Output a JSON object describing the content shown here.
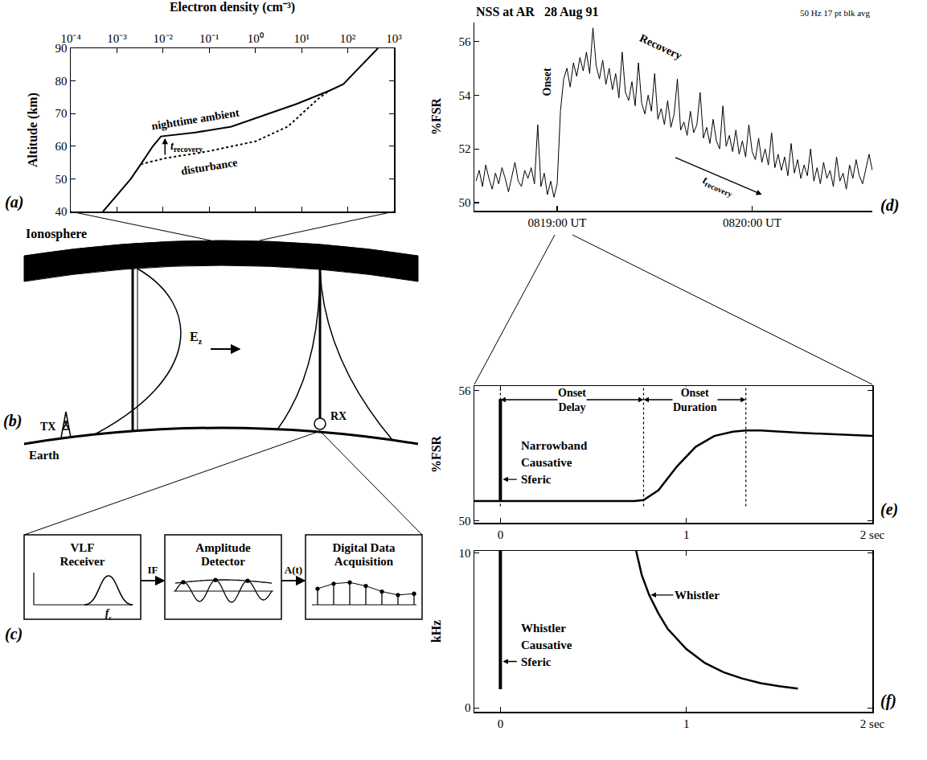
{
  "chart_data": [
    {
      "panel": "(a)",
      "type": "line",
      "x_label": "Electron density (cm⁻³)",
      "y_label": "Altitude (km)",
      "log": "x",
      "color": "#000000",
      "xlim": [
        0.0001,
        1000
      ],
      "xticks": [
        {
          "value": 0.0001,
          "label": "10⁻⁴"
        },
        {
          "value": 0.001,
          "label": "10⁻³"
        },
        {
          "value": 0.01,
          "label": "10⁻²"
        },
        {
          "value": 0.1,
          "label": "10⁻¹"
        },
        {
          "value": 1,
          "label": "10⁰"
        },
        {
          "value": 10,
          "label": "10¹"
        },
        {
          "value": 100,
          "label": "10²"
        },
        {
          "value": 1000,
          "label": "10³"
        }
      ],
      "ylim": [
        40,
        90
      ],
      "yticks": [
        40,
        50,
        60,
        70,
        80,
        90
      ],
      "series": [
        {
          "name": "nighttime ambient",
          "line_style": "solid",
          "x": [
            0.0005,
            0.002,
            0.0033,
            0.006,
            0.009,
            0.05,
            0.3,
            2,
            8,
            40,
            80,
            150,
            450
          ],
          "values": [
            40,
            50,
            54.5,
            60,
            63,
            64.2,
            66,
            70,
            73,
            77,
            79,
            83,
            90
          ]
        },
        {
          "name": "disturbance",
          "line_style": "dotted",
          "x": [
            0.0033,
            0.011,
            0.1,
            1,
            5,
            12,
            25,
            40
          ],
          "values": [
            54.5,
            56.3,
            58.5,
            61.5,
            66,
            71,
            75,
            77
          ]
        }
      ],
      "arrows": [
        {
          "text": "t",
          "subscript": "recovery",
          "x_from": 0.011,
          "y_from": 57,
          "x_to": 0.011,
          "y_to": 62.5
        }
      ]
    },
    {
      "panel": "(d)",
      "type": "line",
      "title": "NSS at AR   28 Aug 91",
      "subtitle": "50 Hz 17 pt blk avg",
      "y_label": "%FSR",
      "color": "#000000",
      "xlim": [
        29914.5,
        30037
      ],
      "xticks": [
        {
          "value": 29940,
          "label": "0819:00 UT"
        },
        {
          "value": 30000,
          "label": "0820:00 UT"
        }
      ],
      "ylim": [
        49.7,
        56.7
      ],
      "yticks": [
        50,
        52,
        54,
        56
      ],
      "x": [
        29915,
        29916,
        29917,
        29918,
        29919,
        29920,
        29921,
        29922,
        29923,
        29924,
        29925,
        29926,
        29927,
        29928,
        29929,
        29930,
        29931,
        29932,
        29933,
        29934,
        29935,
        29936,
        29937,
        29938,
        29939,
        29940,
        29941,
        29942,
        29943,
        29944,
        29945,
        29946,
        29947,
        29948,
        29949,
        29950,
        29951,
        29952,
        29953,
        29954,
        29955,
        29956,
        29957,
        29958,
        29959,
        29960,
        29961,
        29962,
        29963,
        29964,
        29965,
        29966,
        29967,
        29968,
        29969,
        29970,
        29971,
        29972,
        29973,
        29974,
        29975,
        29976,
        29977,
        29978,
        29979,
        29980,
        29981,
        29982,
        29983,
        29984,
        29985,
        29986,
        29987,
        29988,
        29989,
        29990,
        29991,
        29992,
        29993,
        29994,
        29995,
        29996,
        29997,
        29998,
        29999,
        30000,
        30001,
        30002,
        30003,
        30004,
        30005,
        30006,
        30007,
        30008,
        30009,
        30010,
        30011,
        30012,
        30013,
        30014,
        30015,
        30016,
        30017,
        30018,
        30019,
        30020,
        30021,
        30022,
        30023,
        30024,
        30025,
        30026,
        30027,
        30028,
        30029,
        30030,
        30031,
        30032,
        30033,
        30034,
        30035,
        30036,
        30037
      ],
      "values": [
        50.8,
        51.2,
        50.6,
        51.4,
        50.9,
        50.5,
        51.1,
        50.7,
        51.3,
        50.9,
        50.4,
        51.0,
        51.5,
        50.8,
        50.6,
        51.2,
        50.9,
        51.3,
        50.7,
        52.9,
        50.6,
        51.1,
        50.3,
        50.8,
        50.2,
        50.7,
        53.4,
        54.6,
        55.0,
        54.3,
        55.2,
        54.7,
        55.4,
        54.9,
        55.6,
        54.8,
        56.5,
        55.1,
        54.6,
        55.3,
        54.4,
        55.0,
        54.2,
        54.8,
        53.9,
        55.6,
        54.1,
        53.8,
        54.5,
        53.6,
        55.2,
        53.7,
        53.3,
        54.0,
        53.4,
        54.8,
        53.1,
        53.5,
        52.9,
        53.8,
        52.8,
        53.3,
        54.6,
        52.7,
        53.0,
        52.5,
        53.4,
        52.6,
        52.9,
        54.1,
        52.4,
        52.8,
        52.2,
        53.1,
        52.3,
        52.0,
        53.6,
        52.1,
        52.5,
        51.9,
        52.7,
        51.8,
        52.3,
        51.7,
        52.9,
        51.9,
        51.6,
        52.4,
        51.5,
        52.0,
        51.4,
        52.6,
        51.3,
        51.8,
        51.2,
        51.7,
        51.0,
        52.2,
        51.1,
        51.6,
        50.9,
        51.4,
        51.0,
        52.0,
        50.8,
        51.3,
        50.7,
        51.5,
        50.9,
        51.2,
        50.6,
        51.7,
        50.8,
        51.1,
        50.5,
        51.4,
        50.9,
        51.6,
        51.0,
        50.7,
        51.3,
        51.8,
        51.2
      ],
      "annotations": [
        {
          "text": "Onset",
          "x": 29937,
          "y": 54.5
        },
        {
          "text": "Recovery",
          "x": 29972,
          "y": 55.8
        }
      ],
      "arrows": [
        {
          "text": "t",
          "subscript": "recovery",
          "x_from": 29976,
          "y_from": 51.7,
          "x_to": 30003,
          "y_to": 50.3
        }
      ]
    },
    {
      "panel": "(e)",
      "type": "line",
      "y_label": "%FSR",
      "color": "#000000",
      "xlim": [
        -0.14,
        2
      ],
      "xticks": [
        0,
        1,
        {
          "value": 2,
          "label": "2 sec"
        }
      ],
      "ylim": [
        49.9,
        56.2
      ],
      "yticks": [
        50,
        56
      ],
      "series": [
        {
          "x": [
            0,
            0
          ],
          "values": [
            50.9,
            55.6
          ]
        },
        {
          "x": [
            -0.14,
            0.72,
            0.77,
            0.85,
            0.95,
            1.05,
            1.15,
            1.25,
            1.32,
            1.4,
            1.6,
            1.8,
            2
          ],
          "values": [
            50.9,
            50.9,
            50.95,
            51.4,
            52.5,
            53.4,
            53.9,
            54.1,
            54.15,
            54.15,
            54.05,
            53.97,
            53.9
          ]
        }
      ],
      "intervals": [
        {
          "label": "Onset Delay",
          "start": 0,
          "end": 0.77
        },
        {
          "label": "Onset Duration",
          "start": 0.77,
          "end": 1.32
        }
      ],
      "annotations": [
        {
          "text": "Narrowband Causative Sferic",
          "x": 0,
          "y": 51.9
        }
      ]
    },
    {
      "panel": "(f)",
      "type": "line",
      "y_label": "kHz",
      "color": "#000000",
      "xlim": [
        -0.14,
        2
      ],
      "xticks": [
        0,
        1,
        {
          "value": 2,
          "label": "2 sec"
        }
      ],
      "ylim": [
        -0.25,
        10.15
      ],
      "yticks": [
        0,
        10
      ],
      "series": [
        {
          "x": [
            0,
            0
          ],
          "values": [
            1.2,
            10.15
          ]
        },
        {
          "x": [
            0.73,
            0.76,
            0.8,
            0.85,
            0.9,
            1.0,
            1.1,
            1.2,
            1.3,
            1.4,
            1.5,
            1.6
          ],
          "values": [
            10.15,
            8.6,
            7.3,
            6.1,
            5.1,
            3.8,
            2.9,
            2.3,
            1.9,
            1.6,
            1.4,
            1.25
          ]
        }
      ],
      "annotations": [
        {
          "text": "Whistler",
          "x": 0.8,
          "y": 7.3
        },
        {
          "text": "Whistler Causative Sferic",
          "x": 0,
          "y": 3
        }
      ]
    }
  ],
  "diagrams": [
    {
      "panel": "(b)",
      "ionosphere": "Ionosphere",
      "earth": "Earth",
      "transmitter": "TX",
      "receiver": "RX",
      "field": {
        "text": "E",
        "subscript": "z"
      }
    },
    {
      "panel": "(c)",
      "boxes": [
        "VLF Receiver",
        "Amplitude Detector",
        "Digital Data Acquisition"
      ],
      "links": [
        "IF",
        "A(t)"
      ],
      "filter_label": {
        "text": "f",
        "subscript": "c"
      }
    }
  ]
}
